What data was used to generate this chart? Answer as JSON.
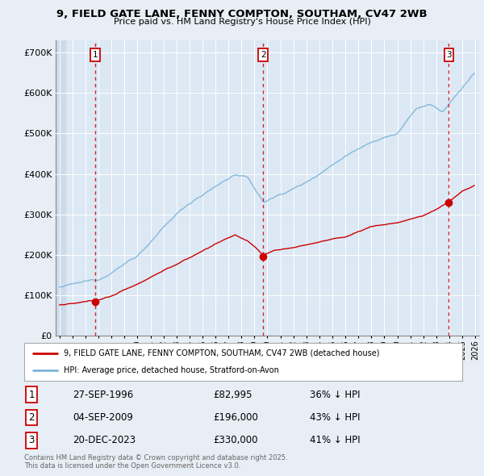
{
  "title": "9, FIELD GATE LANE, FENNY COMPTON, SOUTHAM, CV47 2WB",
  "subtitle": "Price paid vs. HM Land Registry's House Price Index (HPI)",
  "bg_color": "#e8eef5",
  "plot_bg": "#dce8f4",
  "grid_color": "#ffffff",
  "hpi_color": "#7ab4d8",
  "price_color": "#cc0000",
  "sale_dates": [
    1996.75,
    2009.67,
    2023.97
  ],
  "sale_prices": [
    82995,
    196000,
    330000
  ],
  "sale_labels": [
    "1",
    "2",
    "3"
  ],
  "legend_price": "9, FIELD GATE LANE, FENNY COMPTON, SOUTHAM, CV47 2WB (detached house)",
  "legend_hpi": "HPI: Average price, detached house, Stratford-on-Avon",
  "table_data": [
    [
      "1",
      "27-SEP-1996",
      "£82,995",
      "36% ↓ HPI"
    ],
    [
      "2",
      "04-SEP-2009",
      "£196,000",
      "43% ↓ HPI"
    ],
    [
      "3",
      "20-DEC-2023",
      "£330,000",
      "41% ↓ HPI"
    ]
  ],
  "footer": "Contains HM Land Registry data © Crown copyright and database right 2025.\nThis data is licensed under the Open Government Licence v3.0.",
  "ylim": [
    0,
    730000
  ],
  "xlim_left": 1993.7,
  "xlim_right": 2026.3,
  "hatch_end": 1994.5,
  "yticks": [
    0,
    100000,
    200000,
    300000,
    400000,
    500000,
    600000,
    700000
  ],
  "ytick_labels": [
    "£0",
    "£100K",
    "£200K",
    "£300K",
    "£400K",
    "£500K",
    "£600K",
    "£700K"
  ]
}
